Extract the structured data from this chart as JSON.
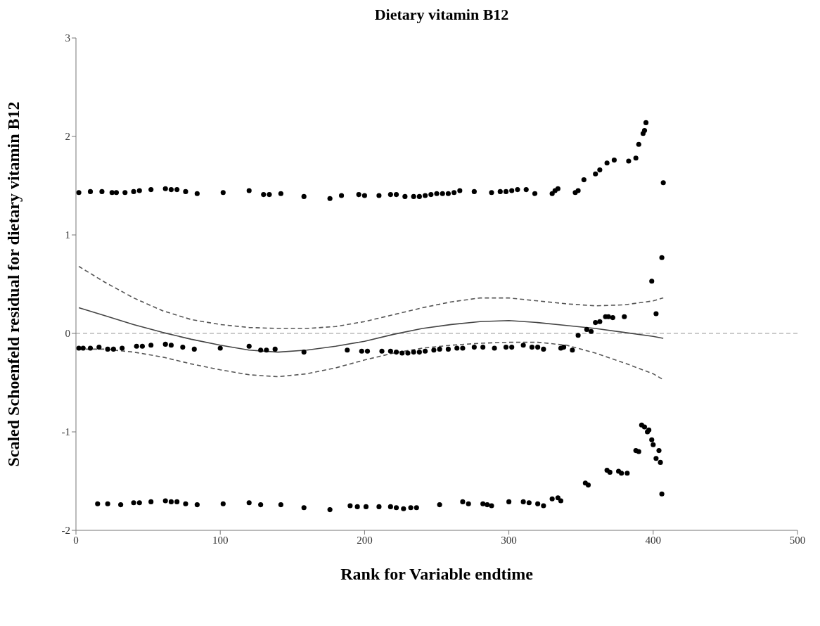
{
  "chart_data": {
    "type": "scatter",
    "title": "Dietary vitamin B12",
    "xlabel": "Rank for Variable endtime",
    "ylabel": "Scaled Schoenfeld residual for dietary vitamin B12",
    "xlim": [
      0,
      500
    ],
    "xticks": [
      0,
      100,
      200,
      300,
      400,
      500
    ],
    "ylim": [
      -2,
      3
    ],
    "yticks": [
      -2,
      -1,
      0,
      1,
      2,
      3
    ],
    "grid": false,
    "ref_lines": [
      {
        "axis": "y",
        "value": 0,
        "color": "#bbbbbb",
        "line_style": "dashed"
      }
    ],
    "series": [
      {
        "color": "#000000",
        "marker": "circle",
        "x": [
          2,
          10,
          18,
          25,
          28,
          34,
          40,
          44,
          52,
          62,
          66,
          70,
          76,
          84,
          102,
          120,
          130,
          134,
          142,
          158,
          176,
          184,
          196,
          200,
          210,
          218,
          222,
          228,
          234,
          238,
          242,
          246,
          250,
          254,
          258,
          262,
          266,
          276,
          288,
          294,
          298,
          302,
          306,
          312,
          318,
          330,
          332,
          334,
          346,
          348,
          352,
          360,
          363,
          368,
          373,
          383,
          388,
          390,
          393,
          394,
          395,
          407
        ],
        "values": [
          1.43,
          1.44,
          1.44,
          1.43,
          1.43,
          1.43,
          1.44,
          1.45,
          1.46,
          1.47,
          1.46,
          1.46,
          1.44,
          1.42,
          1.43,
          1.45,
          1.41,
          1.41,
          1.42,
          1.39,
          1.37,
          1.4,
          1.41,
          1.4,
          1.4,
          1.41,
          1.41,
          1.39,
          1.39,
          1.39,
          1.4,
          1.41,
          1.42,
          1.42,
          1.42,
          1.43,
          1.45,
          1.44,
          1.43,
          1.44,
          1.44,
          1.45,
          1.46,
          1.46,
          1.42,
          1.42,
          1.45,
          1.47,
          1.43,
          1.45,
          1.56,
          1.62,
          1.66,
          1.73,
          1.76,
          1.75,
          1.78,
          1.92,
          2.03,
          2.06,
          2.14,
          1.53
        ]
      },
      {
        "color": "#000000",
        "marker": "circle",
        "x": [
          2,
          5,
          10,
          16,
          22,
          26,
          32,
          42,
          46,
          52,
          62,
          66,
          74,
          82,
          100,
          120,
          128,
          132,
          138,
          158,
          188,
          198,
          202,
          212,
          218,
          222,
          226,
          230,
          234,
          238,
          242,
          248,
          252,
          258,
          264,
          268,
          276,
          282,
          290,
          298,
          302,
          310,
          316,
          320,
          324,
          336,
          338,
          344,
          348,
          354,
          357,
          360,
          363,
          367,
          369,
          372,
          380,
          399,
          402,
          406
        ],
        "values": [
          -0.15,
          -0.15,
          -0.15,
          -0.14,
          -0.16,
          -0.16,
          -0.15,
          -0.13,
          -0.13,
          -0.12,
          -0.11,
          -0.12,
          -0.14,
          -0.16,
          -0.15,
          -0.13,
          -0.17,
          -0.17,
          -0.16,
          -0.19,
          -0.17,
          -0.18,
          -0.18,
          -0.18,
          -0.18,
          -0.19,
          -0.2,
          -0.2,
          -0.19,
          -0.19,
          -0.18,
          -0.17,
          -0.16,
          -0.16,
          -0.15,
          -0.15,
          -0.14,
          -0.14,
          -0.15,
          -0.14,
          -0.14,
          -0.12,
          -0.14,
          -0.14,
          -0.16,
          -0.15,
          -0.14,
          -0.17,
          -0.02,
          0.04,
          0.02,
          0.11,
          0.12,
          0.17,
          0.17,
          0.16,
          0.17,
          0.53,
          0.2,
          0.77
        ]
      },
      {
        "color": "#000000",
        "marker": "circle",
        "x": [
          15,
          22,
          31,
          40,
          44,
          52,
          62,
          66,
          70,
          76,
          84,
          102,
          120,
          128,
          142,
          158,
          176,
          190,
          195,
          201,
          210,
          218,
          222,
          227,
          232,
          236,
          252,
          268,
          272,
          282,
          285,
          288,
          300,
          310,
          314,
          320,
          324,
          330,
          334,
          336,
          353,
          355,
          368,
          370,
          376,
          378,
          382,
          388,
          390,
          392,
          394,
          396,
          397,
          399,
          400,
          402,
          404,
          405,
          406
        ],
        "values": [
          -1.73,
          -1.73,
          -1.74,
          -1.72,
          -1.72,
          -1.71,
          -1.7,
          -1.71,
          -1.71,
          -1.73,
          -1.74,
          -1.73,
          -1.72,
          -1.74,
          -1.74,
          -1.77,
          -1.79,
          -1.75,
          -1.76,
          -1.76,
          -1.76,
          -1.76,
          -1.77,
          -1.78,
          -1.77,
          -1.77,
          -1.74,
          -1.71,
          -1.73,
          -1.73,
          -1.74,
          -1.75,
          -1.71,
          -1.71,
          -1.72,
          -1.73,
          -1.75,
          -1.68,
          -1.67,
          -1.7,
          -1.52,
          -1.54,
          -1.39,
          -1.41,
          -1.4,
          -1.42,
          -1.42,
          -1.19,
          -1.2,
          -0.93,
          -0.95,
          -1.0,
          -0.98,
          -1.08,
          -1.13,
          -1.27,
          -1.19,
          -1.31,
          -1.63
        ]
      },
      {
        "type": "line",
        "color": "#444444",
        "marker": "none",
        "line_style": "solid",
        "x": [
          2,
          20,
          40,
          60,
          80,
          100,
          120,
          140,
          160,
          180,
          200,
          220,
          240,
          260,
          280,
          300,
          320,
          340,
          360,
          380,
          400,
          407
        ],
        "values": [
          0.26,
          0.18,
          0.09,
          0.01,
          -0.06,
          -0.12,
          -0.17,
          -0.19,
          -0.17,
          -0.13,
          -0.08,
          -0.01,
          0.05,
          0.09,
          0.12,
          0.13,
          0.11,
          0.08,
          0.05,
          0.01,
          -0.03,
          -0.05
        ]
      },
      {
        "type": "line",
        "color": "#555555",
        "marker": "none",
        "line_style": "dashed",
        "x": [
          2,
          20,
          40,
          60,
          80,
          100,
          120,
          140,
          160,
          180,
          200,
          220,
          240,
          260,
          280,
          300,
          320,
          340,
          360,
          380,
          400,
          407
        ],
        "values": [
          0.68,
          0.52,
          0.36,
          0.23,
          0.14,
          0.09,
          0.06,
          0.05,
          0.05,
          0.07,
          0.12,
          0.19,
          0.26,
          0.32,
          0.36,
          0.36,
          0.33,
          0.3,
          0.28,
          0.29,
          0.33,
          0.36
        ]
      },
      {
        "type": "line",
        "color": "#555555",
        "marker": "none",
        "line_style": "dashed",
        "x": [
          2,
          20,
          40,
          60,
          80,
          100,
          120,
          140,
          160,
          180,
          200,
          220,
          240,
          260,
          280,
          300,
          320,
          340,
          360,
          380,
          400,
          407
        ],
        "values": [
          -0.16,
          -0.16,
          -0.19,
          -0.24,
          -0.31,
          -0.37,
          -0.42,
          -0.44,
          -0.41,
          -0.35,
          -0.27,
          -0.2,
          -0.15,
          -0.12,
          -0.1,
          -0.09,
          -0.09,
          -0.12,
          -0.2,
          -0.3,
          -0.41,
          -0.47
        ]
      }
    ]
  }
}
